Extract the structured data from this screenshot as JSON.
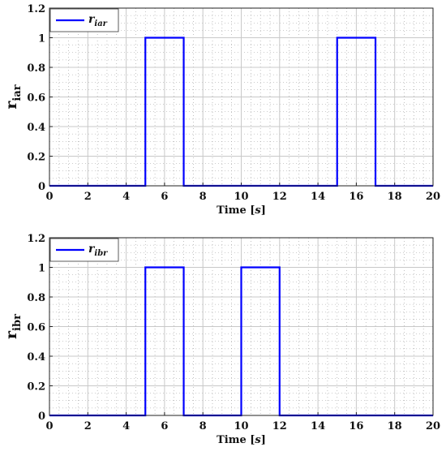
{
  "chart_data": [
    {
      "type": "line",
      "xlabel_main": "Time",
      "xlabel_unit": "s",
      "ylabel_main": "r",
      "ylabel_sub": "iar",
      "xlim": [
        0,
        20
      ],
      "ylim": [
        0,
        1.2
      ],
      "xticks": [
        "0",
        "2",
        "4",
        "6",
        "8",
        "10",
        "12",
        "14",
        "16",
        "18",
        "20"
      ],
      "yticks": [
        "0",
        "0.2",
        "0.4",
        "0.6",
        "0.8",
        "1",
        "1.2"
      ],
      "grid": true,
      "minor_grid": true,
      "legend_position": "top-left",
      "series": [
        {
          "name_main": "r",
          "name_sub": "iar",
          "color": "#0000ff",
          "x": [
            0,
            5,
            5,
            7,
            7,
            15,
            15,
            17,
            17,
            20
          ],
          "y": [
            0,
            0,
            1,
            1,
            0,
            0,
            1,
            1,
            0,
            0
          ]
        }
      ]
    },
    {
      "type": "line",
      "xlabel_main": "Time",
      "xlabel_unit": "s",
      "ylabel_main": "r",
      "ylabel_sub": "ibr",
      "xlim": [
        0,
        20
      ],
      "ylim": [
        0,
        1.2
      ],
      "xticks": [
        "0",
        "2",
        "4",
        "6",
        "8",
        "10",
        "12",
        "14",
        "16",
        "18",
        "20"
      ],
      "yticks": [
        "0",
        "0.2",
        "0.4",
        "0.6",
        "0.8",
        "1",
        "1.2"
      ],
      "grid": true,
      "minor_grid": true,
      "legend_position": "top-left",
      "series": [
        {
          "name_main": "r",
          "name_sub": "ibr",
          "color": "#0000ff",
          "x": [
            0,
            5,
            5,
            7,
            7,
            10,
            10,
            12,
            12,
            20
          ],
          "y": [
            0,
            0,
            1,
            1,
            0,
            0,
            1,
            1,
            0,
            0
          ]
        }
      ]
    }
  ]
}
